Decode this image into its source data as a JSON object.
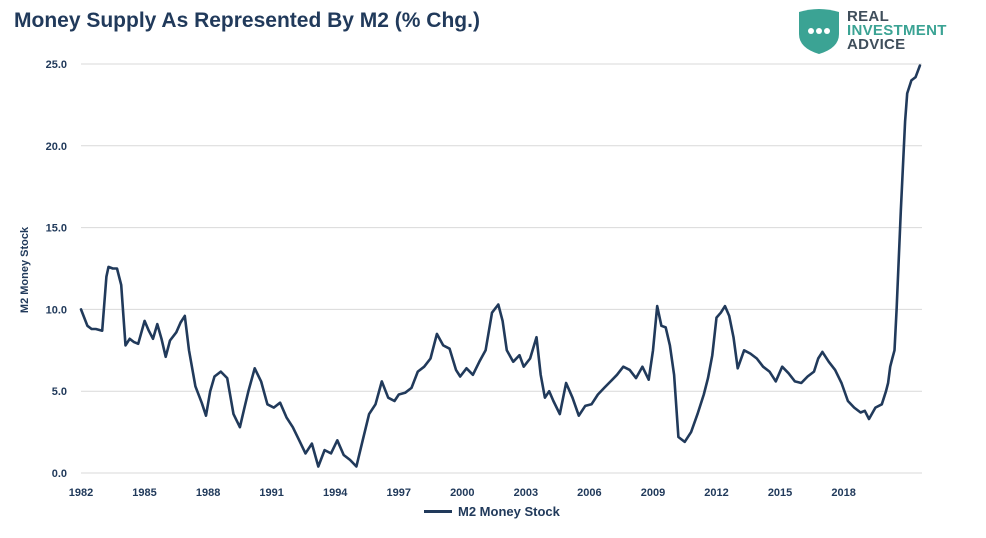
{
  "chart_data": {
    "type": "line",
    "title": "Money Supply As Represented By M2 (% Chg.)",
    "ylabel": "M2 Money Stock",
    "xlabel": "",
    "xlim": [
      1982,
      2021.7
    ],
    "ylim": [
      0,
      25
    ],
    "y_ticks": [
      "0.0",
      "5.0",
      "10.0",
      "15.0",
      "20.0",
      "25.0"
    ],
    "x_ticks": [
      "1982",
      "1985",
      "1988",
      "1991",
      "1994",
      "1997",
      "2000",
      "2003",
      "2006",
      "2009",
      "2012",
      "2015",
      "2018"
    ],
    "grid": true,
    "legend_position": "bottom",
    "series": [
      {
        "name": "M2 Money Stock",
        "color": "#213a5b",
        "x": [
          1982.0,
          1982.3,
          1982.5,
          1982.7,
          1983.0,
          1983.2,
          1983.3,
          1983.5,
          1983.7,
          1983.9,
          1984.1,
          1984.3,
          1984.5,
          1984.7,
          1985.0,
          1985.2,
          1985.4,
          1985.6,
          1985.8,
          1986.0,
          1986.2,
          1986.5,
          1986.7,
          1986.9,
          1987.1,
          1987.4,
          1987.7,
          1987.9,
          1988.1,
          1988.3,
          1988.6,
          1988.9,
          1989.2,
          1989.5,
          1989.7,
          1989.9,
          1990.2,
          1990.5,
          1990.8,
          1991.1,
          1991.4,
          1991.7,
          1992.0,
          1992.3,
          1992.6,
          1992.9,
          1993.2,
          1993.5,
          1993.8,
          1994.1,
          1994.4,
          1994.7,
          1995.0,
          1995.3,
          1995.6,
          1995.9,
          1996.2,
          1996.5,
          1996.8,
          1997.0,
          1997.3,
          1997.6,
          1997.9,
          1998.2,
          1998.5,
          1998.8,
          1999.1,
          1999.4,
          1999.7,
          1999.9,
          2000.2,
          2000.5,
          2000.8,
          2001.1,
          2001.4,
          2001.7,
          2001.9,
          2002.1,
          2002.4,
          2002.7,
          2002.9,
          2003.2,
          2003.5,
          2003.7,
          2003.9,
          2004.1,
          2004.3,
          2004.6,
          2004.9,
          2005.2,
          2005.5,
          2005.8,
          2006.1,
          2006.4,
          2006.7,
          2007.0,
          2007.3,
          2007.6,
          2007.9,
          2008.2,
          2008.5,
          2008.8,
          2009.0,
          2009.2,
          2009.4,
          2009.6,
          2009.8,
          2010.0,
          2010.2,
          2010.5,
          2010.8,
          2011.1,
          2011.4,
          2011.6,
          2011.8,
          2012.0,
          2012.2,
          2012.4,
          2012.6,
          2012.8,
          2013.0,
          2013.3,
          2013.6,
          2013.9,
          2014.2,
          2014.5,
          2014.8,
          2015.1,
          2015.4,
          2015.7,
          2016.0,
          2016.3,
          2016.6,
          2016.8,
          2017.0,
          2017.3,
          2017.6,
          2017.9,
          2018.2,
          2018.5,
          2018.8,
          2019.0,
          2019.2,
          2019.5,
          2019.8,
          2020.0,
          2020.1,
          2020.2,
          2020.3,
          2020.4,
          2020.5,
          2020.7,
          2020.9,
          2021.0,
          2021.2,
          2021.4,
          2021.6
        ],
        "values": [
          10.0,
          9.0,
          8.8,
          8.8,
          8.7,
          12.0,
          12.6,
          12.5,
          12.5,
          11.5,
          7.8,
          8.2,
          8.0,
          7.9,
          9.3,
          8.7,
          8.2,
          9.1,
          8.2,
          7.1,
          8.1,
          8.6,
          9.2,
          9.6,
          7.5,
          5.3,
          4.3,
          3.5,
          5.0,
          5.9,
          6.2,
          5.8,
          3.6,
          2.8,
          3.9,
          5.0,
          6.4,
          5.6,
          4.2,
          4.0,
          4.3,
          3.4,
          2.8,
          2.0,
          1.2,
          1.8,
          0.4,
          1.4,
          1.2,
          2.0,
          1.1,
          0.8,
          0.4,
          2.0,
          3.6,
          4.2,
          5.6,
          4.6,
          4.4,
          4.8,
          4.9,
          5.2,
          6.2,
          6.5,
          7.0,
          8.5,
          7.8,
          7.6,
          6.3,
          5.9,
          6.4,
          6.0,
          6.8,
          7.5,
          9.8,
          10.3,
          9.3,
          7.5,
          6.8,
          7.2,
          6.5,
          7.0,
          8.3,
          6.0,
          4.6,
          5.0,
          4.4,
          3.6,
          5.5,
          4.6,
          3.5,
          4.1,
          4.2,
          4.8,
          5.2,
          5.6,
          6.0,
          6.5,
          6.3,
          5.8,
          6.5,
          5.7,
          7.5,
          10.2,
          9.0,
          8.9,
          7.8,
          6.0,
          2.2,
          1.9,
          2.5,
          3.6,
          4.8,
          5.8,
          7.2,
          9.5,
          9.8,
          10.2,
          9.6,
          8.3,
          6.4,
          7.5,
          7.3,
          7.0,
          6.5,
          6.2,
          5.6,
          6.5,
          6.1,
          5.6,
          5.5,
          5.9,
          6.2,
          7.0,
          7.4,
          6.8,
          6.3,
          5.5,
          4.4,
          4.0,
          3.7,
          3.8,
          3.3,
          4.0,
          4.2,
          5.0,
          5.5,
          6.5,
          7.0,
          7.5,
          10.0,
          16.0,
          21.5,
          23.2,
          24.0,
          24.2,
          24.9
        ]
      }
    ]
  },
  "legend": {
    "label": "M2 Money Stock"
  },
  "logo": {
    "line1": "REAL",
    "line2": "INVESTMENT",
    "line3": "ADVICE"
  }
}
